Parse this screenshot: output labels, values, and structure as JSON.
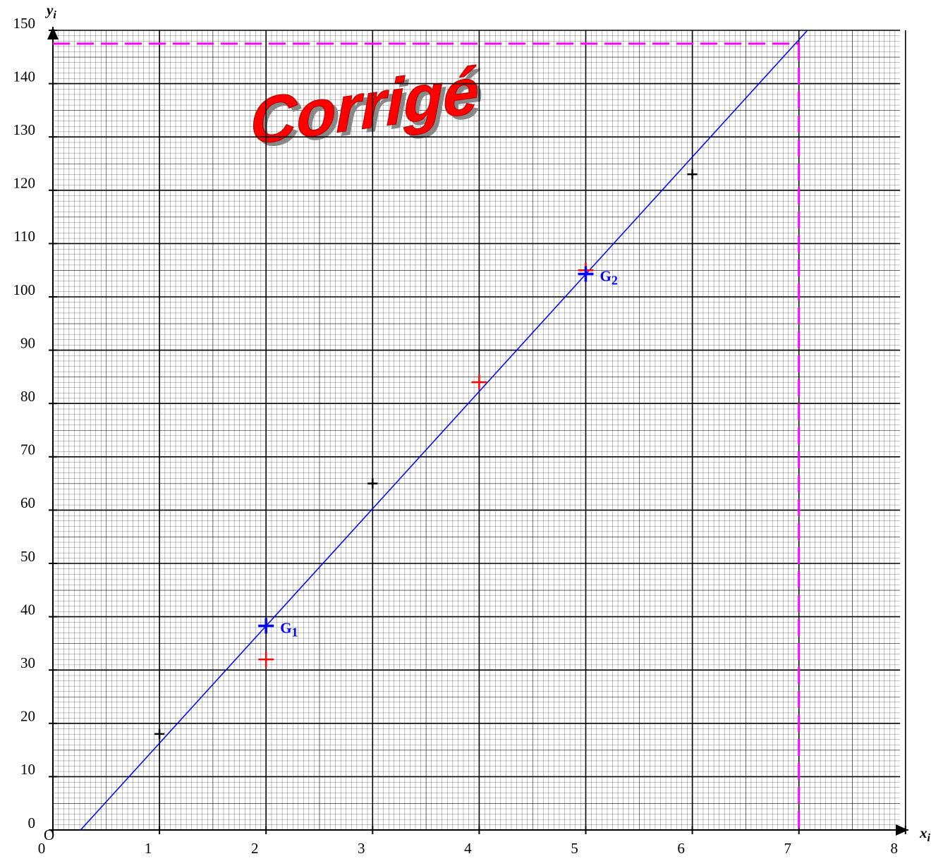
{
  "chart_data": {
    "type": "scatter",
    "watermark": "Corrigé",
    "xlabel": {
      "main": "x",
      "sub": "i"
    },
    "ylabel": {
      "main": "y",
      "sub": "i"
    },
    "origin_label": "O",
    "xlim": [
      0,
      8
    ],
    "ylim": [
      0,
      150
    ],
    "xticks": [
      0,
      1,
      2,
      3,
      4,
      5,
      6,
      7,
      8
    ],
    "yticks": [
      0,
      10,
      20,
      30,
      40,
      50,
      60,
      70,
      80,
      90,
      100,
      110,
      120,
      130,
      140,
      150
    ],
    "grid": true,
    "series": [
      {
        "color": "#000000",
        "x": [
          1,
          3,
          6
        ],
        "values": [
          18,
          65,
          123
        ]
      },
      {
        "color": "#ff0000",
        "x": [
          2,
          4,
          5
        ],
        "values": [
          32,
          84,
          105
        ]
      },
      {
        "color": "#0000ff",
        "x": [
          2,
          5
        ],
        "values": [
          38.3,
          104.3
        ],
        "point_labels": [
          {
            "main": "G",
            "sub": "1"
          },
          {
            "main": "G",
            "sub": "2"
          }
        ]
      }
    ],
    "fit_line": {
      "color": "#0000ff",
      "x": [
        0.26,
        7.08
      ],
      "values": [
        0,
        150
      ]
    },
    "reference": {
      "color": "#ff00ff",
      "x": 7,
      "y": 147.5
    }
  }
}
